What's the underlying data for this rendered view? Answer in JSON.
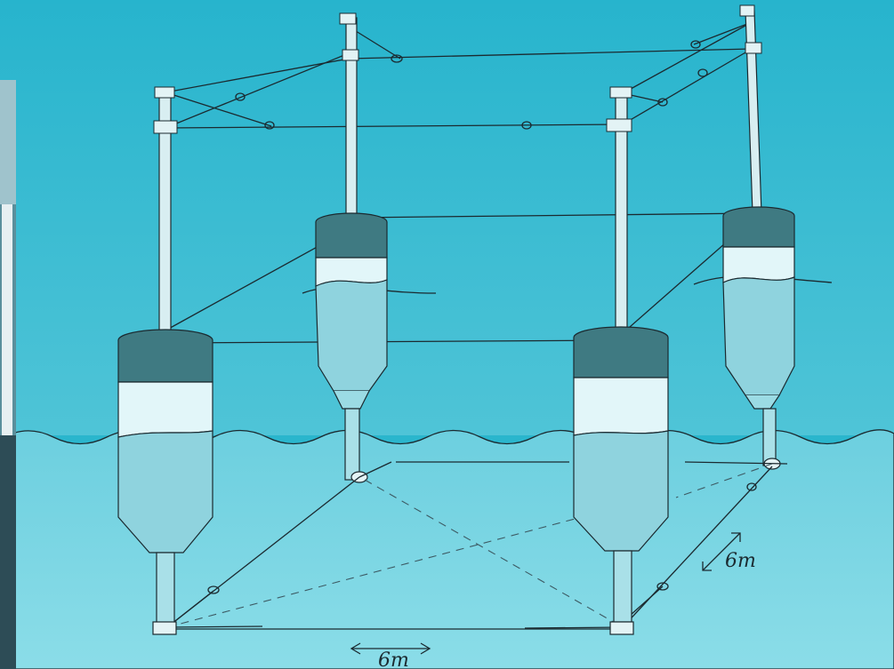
{
  "diagram": {
    "dimensions": {
      "horizontal_spacing": "6m",
      "depth_spacing": "6m"
    },
    "colors": {
      "sky_top": "#27b4cd",
      "sky_bottom": "#52c6d8",
      "water_top": "#6cd0df",
      "water_bottom": "#8bdce7",
      "float_cap": "#3f7a82",
      "float_light": "#dff5f8",
      "float_body": "#8fd3de",
      "pole": "#d8eef1",
      "line": "#1b2a30"
    },
    "elements": {
      "floats": [
        "float-front-left",
        "float-back-left",
        "float-front-right",
        "float-back-right"
      ],
      "poles": 4
    }
  }
}
